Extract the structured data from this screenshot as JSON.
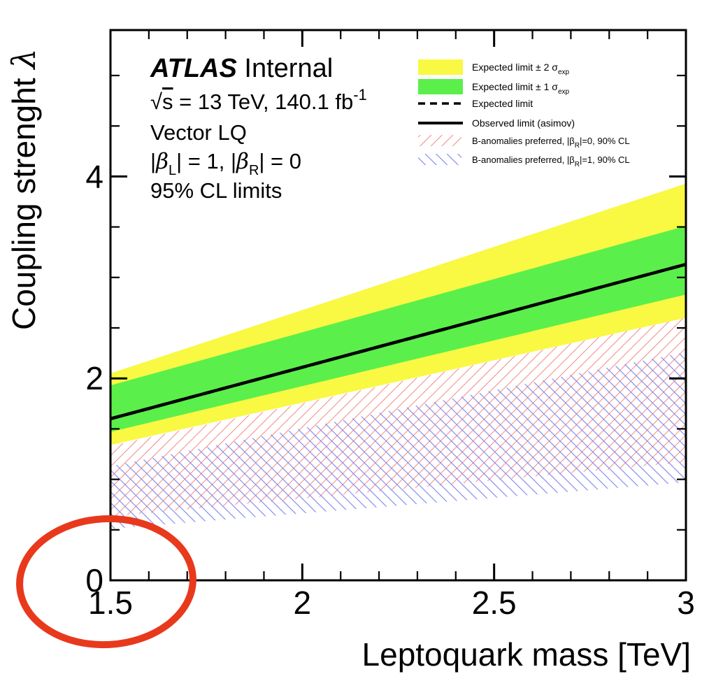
{
  "colors": {
    "band_2sigma": "#f9f843",
    "band_1sigma": "#5bef4b",
    "hatch_red": "#f2928e",
    "hatch_blue": "#7d84ec",
    "limit_line": "#000000",
    "frame": "#000000",
    "annotation_ellipse": "#e8391d"
  },
  "info_box": {
    "title_bold": "ATLAS",
    "title_rest": " Internal",
    "line2": {
      "sqrt": "√",
      "s": "s",
      "mid": " = 13 TeV, 140.1 fb",
      "sup": "-1"
    },
    "line3": "Vector LQ",
    "line4": {
      "p1": "|",
      "beta": "β",
      "sub1": "L",
      "p2": "| = 1, |",
      "sub2": "R",
      "p3": "| = 0"
    },
    "line5": "95% CL limits"
  },
  "legend": {
    "items": [
      {
        "swatch": "yellow-box",
        "pre": "Expected limit ± 2 σ",
        "sub": "exp",
        "post": ""
      },
      {
        "swatch": "green-box",
        "pre": "Expected limit ± 1 σ",
        "sub": "exp",
        "post": ""
      },
      {
        "swatch": "dashed-line",
        "pre": "Expected limit",
        "sub": "",
        "post": ""
      },
      {
        "swatch": "solid-line",
        "pre": "Observed limit (asimov)",
        "sub": "",
        "post": ""
      },
      {
        "swatch": "red-hatch",
        "pre": "B-anomalies preferred,  |β",
        "sub": "R",
        "post": "|=0, 90% CL"
      },
      {
        "swatch": "blue-hatch",
        "pre": "B-anomalies preferred,  |β",
        "sub": "R",
        "post": "|=1, 90% CL"
      }
    ]
  },
  "chart_data": {
    "type": "area",
    "xlabel": "Leptoquark mass [TeV]",
    "ylabel_text": "Coupling strenght  ",
    "ylabel_symbol": "λ",
    "xlim": [
      1.5,
      3.0
    ],
    "ylim": [
      0,
      5.45
    ],
    "x_major_ticks": [
      {
        "value": 1.5,
        "label": "1.5"
      },
      {
        "value": 2,
        "label": "2"
      },
      {
        "value": 2.5,
        "label": "2.5"
      },
      {
        "value": 3,
        "label": "3"
      }
    ],
    "x_minor_step": 0.1,
    "y_major_ticks": [
      {
        "value": 0,
        "label": "0"
      },
      {
        "value": 2,
        "label": "2"
      },
      {
        "value": 4,
        "label": "4"
      }
    ],
    "y_minor_step": 0.5,
    "grid": false,
    "legend_position": "top-right",
    "series": [
      {
        "name": "expected_limit_2sigma_band",
        "style": "band",
        "color_key": "band_2sigma",
        "x": [
          1.5,
          3.0
        ],
        "lower": [
          1.34,
          2.6
        ],
        "upper": [
          2.05,
          3.93
        ]
      },
      {
        "name": "expected_limit_1sigma_band",
        "style": "band",
        "color_key": "band_1sigma",
        "x": [
          1.5,
          3.0
        ],
        "lower": [
          1.47,
          2.83
        ],
        "upper": [
          1.93,
          3.51
        ]
      },
      {
        "name": "b_anomalies_preferred_betaR_0",
        "style": "hatch-band",
        "hatch": "/",
        "color_key": "hatch_red",
        "x": [
          1.5,
          3.0
        ],
        "lower": [
          0.63,
          1.17
        ],
        "upper": [
          1.33,
          2.6
        ]
      },
      {
        "name": "b_anomalies_preferred_betaR_1",
        "style": "hatch-band",
        "hatch": "\\",
        "color_key": "hatch_blue",
        "x": [
          1.5,
          3.0
        ],
        "lower": [
          0.51,
          0.97
        ],
        "upper": [
          1.13,
          2.26
        ]
      },
      {
        "name": "expected_limit",
        "style": "dashed-line",
        "color_key": "limit_line",
        "x": [
          1.5,
          3.0
        ],
        "y": [
          1.6,
          3.13
        ]
      },
      {
        "name": "observed_limit_asimov",
        "style": "solid-line",
        "color_key": "limit_line",
        "x": [
          1.5,
          3.0
        ],
        "y": [
          1.6,
          3.13
        ]
      }
    ],
    "annotation": {
      "shape": "ellipse",
      "meaning": "highlight around lower-left corner (0, 1.5)"
    }
  }
}
